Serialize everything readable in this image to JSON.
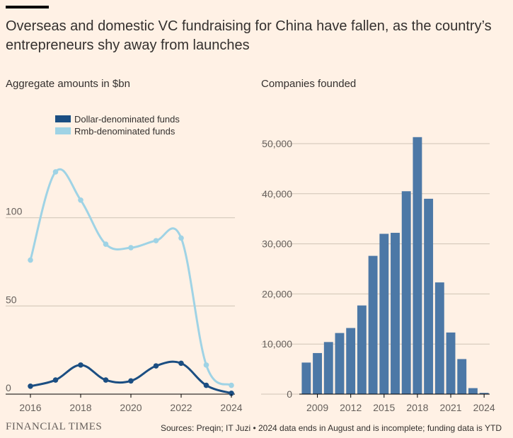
{
  "headline": "Overseas and domestic VC fundraising for China have fallen, as the country’s entrepreneurs shy away from launches",
  "source": "Sources: Preqin; IT Juzi • 2024 data ends in August and is incomplete; funding data is YTD",
  "logo": "FINANCIAL TIMES",
  "colors": {
    "background": "#fff1e5",
    "dollar": "#1b4e82",
    "rmb": "#9fd3e5",
    "bars": "#4c78a6",
    "grid": "#cfc4b5"
  },
  "chart_data": [
    {
      "type": "line",
      "title": "Aggregate amounts in $bn",
      "x": [
        2016,
        2017,
        2018,
        2019,
        2020,
        2021,
        2022,
        2023,
        2024
      ],
      "x_tick_labels": [
        "2016",
        "2018",
        "2020",
        "2022",
        "2024"
      ],
      "y_tick_labels": [
        "0",
        "50",
        "100"
      ],
      "ylim": [
        0,
        140
      ],
      "grid": true,
      "legend_position": "top-left",
      "series": [
        {
          "name": "Dollar-denominated funds",
          "values": [
            4.5,
            8,
            16.5,
            8,
            7.5,
            16,
            17.5,
            5,
            0.5
          ]
        },
        {
          "name": "Rmb-denominated funds",
          "values": [
            76,
            126,
            110,
            85,
            83,
            87,
            88.5,
            16.5,
            5
          ]
        }
      ]
    },
    {
      "type": "bar",
      "title": "Companies founded",
      "categories": [
        "2008",
        "2009",
        "2010",
        "2011",
        "2012",
        "2013",
        "2014",
        "2015",
        "2016",
        "2017",
        "2018",
        "2019",
        "2020",
        "2021",
        "2022",
        "2023",
        "2024"
      ],
      "values": [
        6300,
        8200,
        10400,
        12200,
        13200,
        17700,
        27600,
        32000,
        32200,
        40500,
        51300,
        39000,
        22300,
        12300,
        7000,
        1200,
        250
      ],
      "x_tick_labels": [
        "2009",
        "2012",
        "2015",
        "2018",
        "2021",
        "2024"
      ],
      "y_tick_labels": [
        "0",
        "10,000",
        "20,000",
        "30,000",
        "40,000",
        "50,000"
      ],
      "ylim": [
        0,
        55000
      ],
      "grid": true
    }
  ]
}
